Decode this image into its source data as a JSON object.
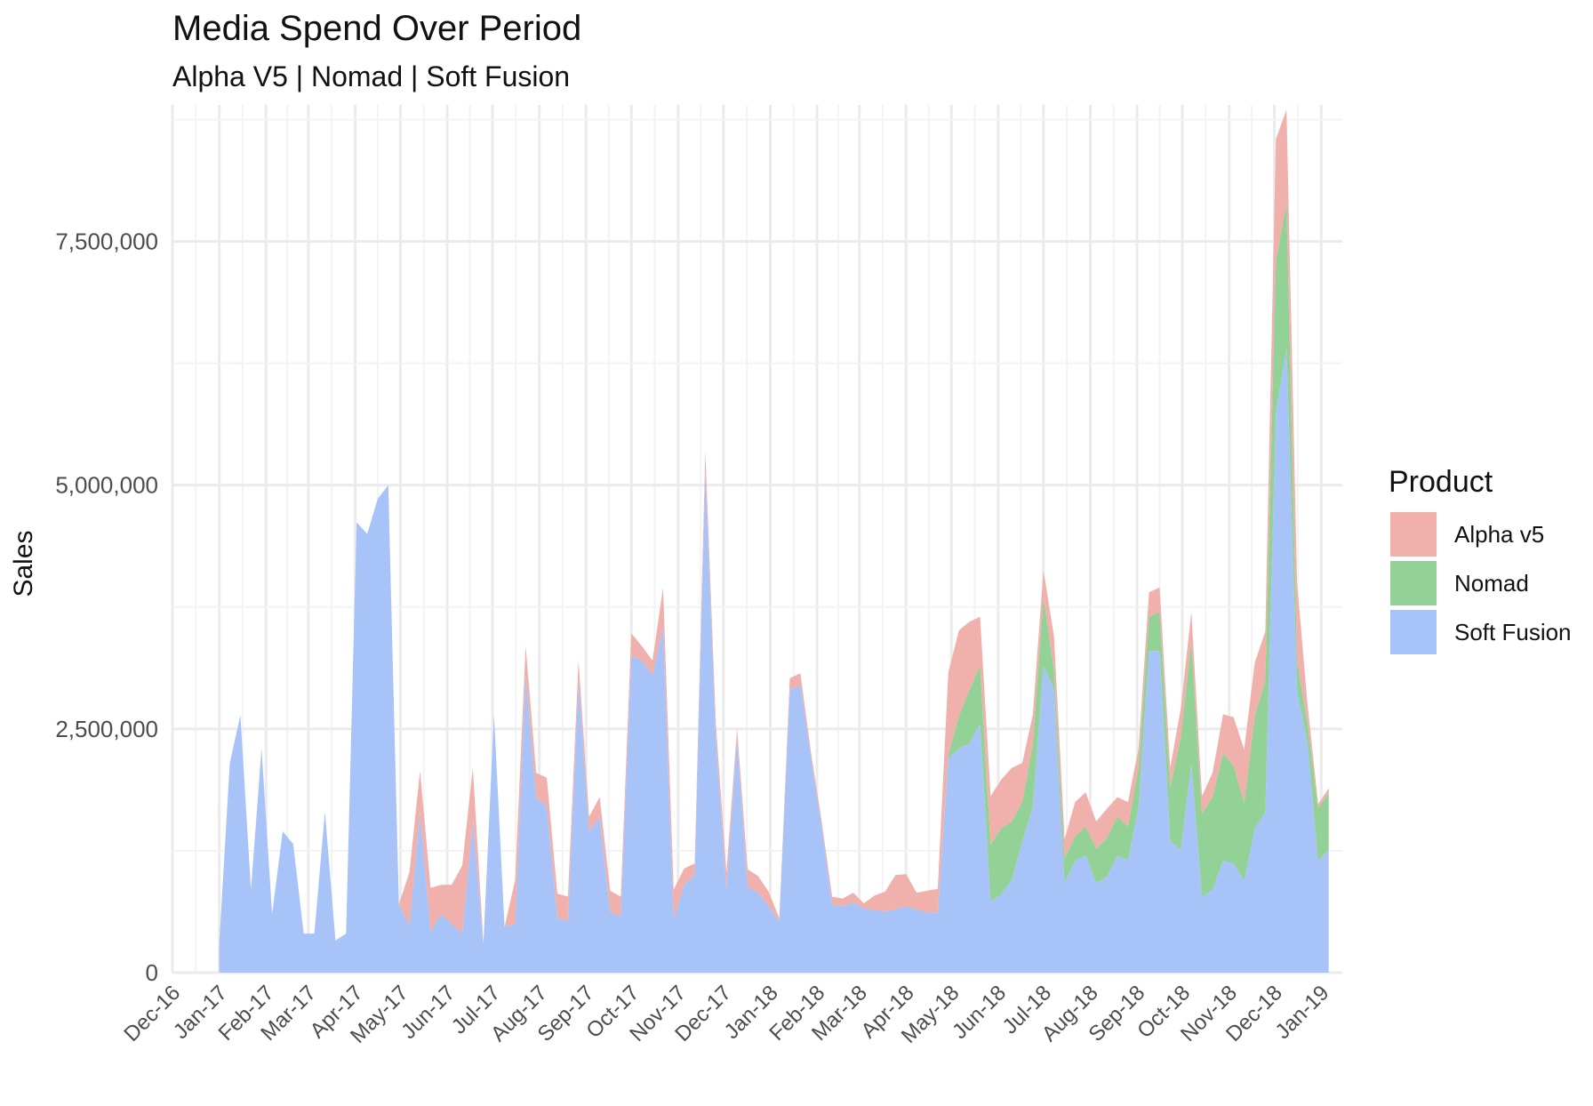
{
  "title": "Media Spend Over Period",
  "subtitle": "Alpha V5 | Nomad | Soft Fusion",
  "chart_data": {
    "type": "area",
    "stacked": true,
    "title": "Media Spend Over Period",
    "subtitle": "Alpha V5 | Nomad | Soft Fusion",
    "xlabel": "",
    "ylabel": "Sales",
    "ylim": [
      0,
      8900000
    ],
    "yticks": [
      0,
      2500000,
      5000000,
      7500000
    ],
    "ytick_labels": [
      "0",
      "2,500,000",
      "5,000,000",
      "7,500,000"
    ],
    "xlim": [
      "2016-12-01",
      "2019-01-15"
    ],
    "xtick_labels": [
      "Dec-16",
      "Jan-17",
      "Feb-17",
      "Mar-17",
      "Apr-17",
      "May-17",
      "Jun-17",
      "Jul-17",
      "Aug-17",
      "Sep-17",
      "Oct-17",
      "Nov-17",
      "Dec-17",
      "Jan-18",
      "Feb-18",
      "Mar-18",
      "Apr-18",
      "May-18",
      "Jun-18",
      "Jul-18",
      "Aug-18",
      "Sep-18",
      "Oct-18",
      "Nov-18",
      "Dec-18",
      "Jan-19"
    ],
    "xtick_dates": [
      "2016-12-01",
      "2017-01-01",
      "2017-02-01",
      "2017-03-01",
      "2017-04-01",
      "2017-05-01",
      "2017-06-01",
      "2017-07-01",
      "2017-08-01",
      "2017-09-01",
      "2017-10-01",
      "2017-11-01",
      "2017-12-01",
      "2018-01-01",
      "2018-02-01",
      "2018-03-01",
      "2018-04-01",
      "2018-05-01",
      "2018-06-01",
      "2018-07-01",
      "2018-08-01",
      "2018-09-01",
      "2018-10-01",
      "2018-11-01",
      "2018-12-01",
      "2019-01-01"
    ],
    "grid": true,
    "legend": {
      "title": "Product",
      "position": "right"
    },
    "x": [
      "2017-01-01",
      "2017-01-08",
      "2017-01-15",
      "2017-01-22",
      "2017-01-29",
      "2017-02-05",
      "2017-02-12",
      "2017-02-19",
      "2017-02-26",
      "2017-03-05",
      "2017-03-12",
      "2017-03-19",
      "2017-03-26",
      "2017-04-02",
      "2017-04-09",
      "2017-04-16",
      "2017-04-23",
      "2017-04-30",
      "2017-05-07",
      "2017-05-14",
      "2017-05-21",
      "2017-05-28",
      "2017-06-04",
      "2017-06-11",
      "2017-06-18",
      "2017-06-25",
      "2017-07-02",
      "2017-07-09",
      "2017-07-16",
      "2017-07-23",
      "2017-07-30",
      "2017-08-06",
      "2017-08-13",
      "2017-08-20",
      "2017-08-27",
      "2017-09-03",
      "2017-09-10",
      "2017-09-17",
      "2017-09-24",
      "2017-10-01",
      "2017-10-08",
      "2017-10-15",
      "2017-10-22",
      "2017-10-29",
      "2017-11-05",
      "2017-11-12",
      "2017-11-19",
      "2017-11-26",
      "2017-12-03",
      "2017-12-10",
      "2017-12-17",
      "2017-12-24",
      "2017-12-31",
      "2018-01-07",
      "2018-01-14",
      "2018-01-21",
      "2018-01-28",
      "2018-02-04",
      "2018-02-11",
      "2018-02-18",
      "2018-02-25",
      "2018-03-04",
      "2018-03-11",
      "2018-03-18",
      "2018-03-25",
      "2018-04-01",
      "2018-04-08",
      "2018-04-15",
      "2018-04-22",
      "2018-04-29",
      "2018-05-06",
      "2018-05-13",
      "2018-05-20",
      "2018-05-27",
      "2018-06-03",
      "2018-06-10",
      "2018-06-17",
      "2018-06-24",
      "2018-07-01",
      "2018-07-08",
      "2018-07-15",
      "2018-07-22",
      "2018-07-29",
      "2018-08-05",
      "2018-08-12",
      "2018-08-19",
      "2018-08-26",
      "2018-09-02",
      "2018-09-09",
      "2018-09-16",
      "2018-09-23",
      "2018-09-30",
      "2018-10-07",
      "2018-10-14",
      "2018-10-21",
      "2018-10-28",
      "2018-11-04",
      "2018-11-11",
      "2018-11-18",
      "2018-11-25",
      "2018-12-02",
      "2018-12-09",
      "2018-12-16",
      "2018-12-23",
      "2018-12-30",
      "2019-01-06"
    ],
    "series": [
      {
        "name": "Soft Fusion",
        "color": "#a8c3f8",
        "values": [
          300000,
          2150000,
          2640000,
          850000,
          2300000,
          600000,
          1450000,
          1320000,
          400000,
          400000,
          1650000,
          330000,
          400000,
          4620000,
          4500000,
          4860000,
          5000000,
          700000,
          480000,
          1650000,
          420000,
          600000,
          500000,
          400000,
          1550000,
          300000,
          2650000,
          470000,
          500000,
          3050000,
          1800000,
          1700000,
          560000,
          530000,
          3000000,
          1450000,
          1600000,
          620000,
          580000,
          3250000,
          3200000,
          3050000,
          3550000,
          550000,
          900000,
          1000000,
          5150000,
          2400000,
          850000,
          2400000,
          880000,
          820000,
          680000,
          530000,
          2900000,
          2950000,
          2200000,
          1500000,
          700000,
          680000,
          720000,
          660000,
          640000,
          630000,
          650000,
          680000,
          650000,
          620000,
          610000,
          2200000,
          2300000,
          2350000,
          2550000,
          730000,
          800000,
          950000,
          1350000,
          1700000,
          3150000,
          2900000,
          920000,
          1150000,
          1200000,
          920000,
          980000,
          1200000,
          1150000,
          1700000,
          3300000,
          3300000,
          1350000,
          1260000,
          2150000,
          780000,
          850000,
          1150000,
          1120000,
          940000,
          1480000,
          1650000,
          5750000,
          6400000,
          2900000,
          2350000,
          1150000,
          1260000
        ]
      },
      {
        "name": "Nomad",
        "color": "#93d296",
        "values": [
          0,
          0,
          0,
          0,
          0,
          0,
          0,
          0,
          0,
          0,
          0,
          0,
          0,
          0,
          0,
          0,
          0,
          0,
          0,
          0,
          0,
          0,
          0,
          0,
          0,
          0,
          0,
          0,
          0,
          0,
          0,
          0,
          0,
          0,
          0,
          0,
          0,
          0,
          0,
          0,
          0,
          0,
          0,
          0,
          0,
          0,
          0,
          0,
          0,
          0,
          0,
          0,
          0,
          0,
          0,
          0,
          0,
          0,
          0,
          0,
          0,
          0,
          0,
          0,
          0,
          0,
          0,
          0,
          0,
          30000,
          330000,
          550000,
          600000,
          580000,
          680000,
          600000,
          400000,
          650000,
          700000,
          200000,
          250000,
          250000,
          300000,
          350000,
          400000,
          400000,
          350000,
          400000,
          350000,
          400000,
          550000,
          1150000,
          1250000,
          850000,
          950000,
          1100000,
          1000000,
          800000,
          1150000,
          1350000,
          1550000,
          1500000,
          300000,
          200000,
          540000,
          580000
        ]
      },
      {
        "name": "Alpha v5",
        "color": "#f0b0ab",
        "values": [
          0,
          0,
          0,
          0,
          0,
          0,
          0,
          0,
          0,
          0,
          0,
          0,
          0,
          0,
          0,
          0,
          0,
          0,
          550000,
          420000,
          450000,
          300000,
          400000,
          700000,
          550000,
          0,
          0,
          0,
          450000,
          300000,
          250000,
          300000,
          250000,
          250000,
          200000,
          150000,
          200000,
          220000,
          200000,
          230000,
          150000,
          150000,
          400000,
          300000,
          170000,
          120000,
          200000,
          150000,
          180000,
          100000,
          180000,
          170000,
          150000,
          30000,
          120000,
          120000,
          60000,
          60000,
          80000,
          80000,
          100000,
          50000,
          150000,
          200000,
          350000,
          330000,
          170000,
          220000,
          250000,
          850000,
          880000,
          700000,
          500000,
          500000,
          500000,
          550000,
          400000,
          300000,
          280000,
          350000,
          200000,
          350000,
          350000,
          280000,
          300000,
          200000,
          250000,
          200000,
          250000,
          250000,
          200000,
          300000,
          300000,
          180000,
          250000,
          400000,
          500000,
          550000,
          550000,
          500000,
          1250000,
          950000,
          800000,
          200000,
          40000,
          50000
        ]
      }
    ]
  }
}
